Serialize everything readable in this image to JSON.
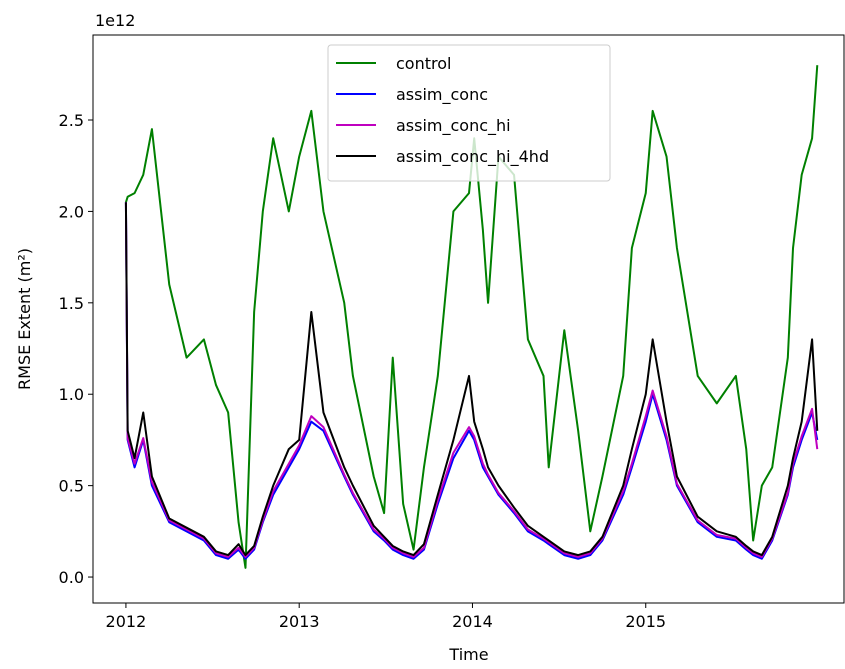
{
  "chart_data": {
    "type": "line",
    "y_label": "RMSE Extent (m²)",
    "x_label": "Time",
    "y_offset_label": "1e12",
    "legend": "upper center",
    "xlim": [
      2011.81,
      2016.15
    ],
    "xticks": [
      2012,
      2013,
      2014,
      2015
    ],
    "ylim": [
      -0.142,
      2.965
    ],
    "yticks": [
      {
        "value": 0,
        "label": "0.0"
      },
      {
        "value": 0.5,
        "label": "0.5"
      },
      {
        "value": 1,
        "label": "1.0"
      },
      {
        "value": 1.5,
        "label": "1.5"
      },
      {
        "value": 2,
        "label": "2.0"
      },
      {
        "value": 2.5,
        "label": "2.5"
      }
    ],
    "x": [
      2012.0,
      2012.01,
      2012.05,
      2012.1,
      2012.15,
      2012.25,
      2012.35,
      2012.45,
      2012.52,
      2012.59,
      2012.65,
      2012.69,
      2012.74,
      2012.79,
      2012.85,
      2012.94,
      2013.0,
      2013.07,
      2013.14,
      2013.26,
      2013.31,
      2013.43,
      2013.49,
      2013.54,
      2013.6,
      2013.66,
      2013.72,
      2013.8,
      2013.89,
      2013.98,
      2014.01,
      2014.06,
      2014.09,
      2014.15,
      2014.24,
      2014.32,
      2014.41,
      2014.44,
      2014.53,
      2014.61,
      2014.68,
      2014.75,
      2014.87,
      2014.92,
      2015.0,
      2015.04,
      2015.12,
      2015.18,
      2015.3,
      2015.41,
      2015.52,
      2015.58,
      2015.62,
      2015.67,
      2015.73,
      2015.82,
      2015.85,
      2015.9,
      2015.96,
      2015.99
    ],
    "series": [
      {
        "name": "control",
        "color": "#008000",
        "values": [
          2.05,
          2.08,
          2.1,
          2.2,
          2.45,
          1.6,
          1.2,
          1.3,
          1.05,
          0.9,
          0.3,
          0.05,
          1.45,
          2.0,
          2.4,
          2.0,
          2.3,
          2.55,
          2.0,
          1.5,
          1.1,
          0.55,
          0.35,
          1.2,
          0.4,
          0.15,
          0.6,
          1.1,
          2.0,
          2.1,
          2.4,
          1.9,
          1.5,
          2.3,
          2.2,
          1.3,
          1.1,
          0.6,
          1.35,
          0.8,
          0.25,
          0.55,
          1.1,
          1.8,
          2.1,
          2.55,
          2.3,
          1.8,
          1.1,
          0.95,
          1.1,
          0.7,
          0.2,
          0.5,
          0.6,
          1.2,
          1.8,
          2.2,
          2.4,
          2.8
        ]
      },
      {
        "name": "assim_conc",
        "color": "#0000ff",
        "values": [
          2.05,
          0.75,
          0.6,
          0.75,
          0.5,
          0.3,
          0.25,
          0.2,
          0.12,
          0.1,
          0.15,
          0.1,
          0.15,
          0.3,
          0.45,
          0.6,
          0.7,
          0.85,
          0.8,
          0.55,
          0.45,
          0.25,
          0.2,
          0.15,
          0.12,
          0.1,
          0.15,
          0.4,
          0.65,
          0.8,
          0.75,
          0.6,
          0.55,
          0.45,
          0.35,
          0.25,
          0.2,
          0.18,
          0.12,
          0.1,
          0.12,
          0.2,
          0.45,
          0.6,
          0.85,
          1.0,
          0.75,
          0.5,
          0.3,
          0.22,
          0.2,
          0.15,
          0.12,
          0.1,
          0.2,
          0.45,
          0.6,
          0.75,
          0.9,
          0.75
        ]
      },
      {
        "name": "assim_conc_hi",
        "color": "#bf00bf",
        "values": [
          2.05,
          0.76,
          0.62,
          0.76,
          0.52,
          0.31,
          0.26,
          0.21,
          0.13,
          0.11,
          0.16,
          0.11,
          0.16,
          0.31,
          0.47,
          0.62,
          0.72,
          0.88,
          0.82,
          0.56,
          0.46,
          0.26,
          0.21,
          0.16,
          0.13,
          0.11,
          0.16,
          0.42,
          0.68,
          0.82,
          0.77,
          0.62,
          0.56,
          0.46,
          0.36,
          0.26,
          0.21,
          0.19,
          0.13,
          0.11,
          0.13,
          0.21,
          0.47,
          0.62,
          0.88,
          1.02,
          0.77,
          0.51,
          0.31,
          0.23,
          0.21,
          0.16,
          0.13,
          0.11,
          0.21,
          0.46,
          0.62,
          0.77,
          0.92,
          0.7
        ]
      },
      {
        "name": "assim_conc_hi_4hd",
        "color": "#000000",
        "values": [
          2.05,
          0.8,
          0.65,
          0.9,
          0.55,
          0.32,
          0.27,
          0.22,
          0.14,
          0.12,
          0.18,
          0.12,
          0.17,
          0.33,
          0.5,
          0.7,
          0.75,
          1.45,
          0.9,
          0.6,
          0.5,
          0.28,
          0.22,
          0.17,
          0.14,
          0.12,
          0.18,
          0.45,
          0.75,
          1.1,
          0.85,
          0.7,
          0.6,
          0.5,
          0.38,
          0.28,
          0.22,
          0.2,
          0.14,
          0.12,
          0.14,
          0.22,
          0.5,
          0.7,
          1.0,
          1.3,
          0.85,
          0.55,
          0.33,
          0.25,
          0.22,
          0.17,
          0.14,
          0.12,
          0.22,
          0.5,
          0.65,
          0.85,
          1.3,
          0.8
        ]
      }
    ]
  }
}
